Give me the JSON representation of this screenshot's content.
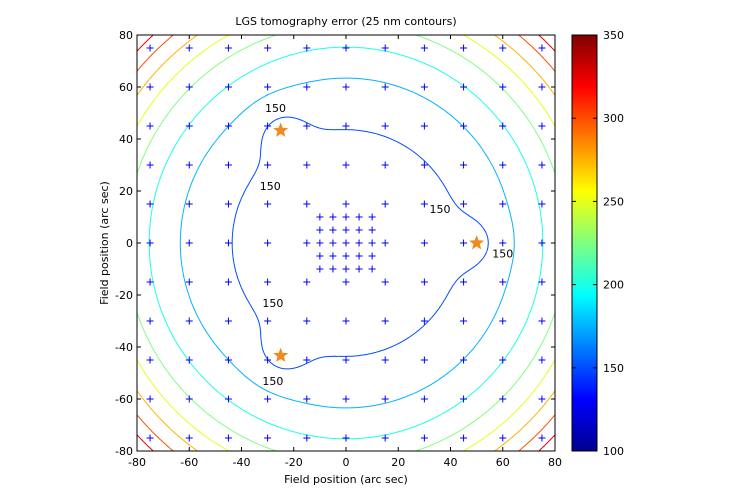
{
  "chart_data": [
    {
      "type": "contour",
      "title": "LGS tomography error (25 nm contours)",
      "xlabel": "Field position (arc sec)",
      "ylabel": "Field position (arc sec)",
      "xlim": [
        -80,
        80
      ],
      "ylim": [
        -80,
        80
      ],
      "x_ticks": [
        "-80",
        "-60",
        "-40",
        "-20",
        "0",
        "20",
        "40",
        "60",
        "80"
      ],
      "y_ticks": [
        "80",
        "60",
        "40",
        "20",
        "0",
        "-20",
        "-40",
        "-60",
        "-80"
      ],
      "colormap": "jet",
      "clim": [
        100,
        350
      ],
      "contour_step": 25,
      "contour_levels": [
        150,
        175,
        200,
        225,
        250,
        275,
        300,
        325
      ],
      "colorbar_ticks": [
        "350",
        "300",
        "250",
        "200",
        "150",
        "100"
      ],
      "contour_labels": [
        {
          "text": "150",
          "x": -27,
          "y": 52
        },
        {
          "text": "150",
          "x": -29,
          "y": 22
        },
        {
          "text": "150",
          "x": 36,
          "y": 13
        },
        {
          "text": "150",
          "x": 60,
          "y": -4
        },
        {
          "text": "150",
          "x": -28,
          "y": -23
        },
        {
          "text": "150",
          "x": -28,
          "y": -53
        }
      ],
      "stars": [
        {
          "x": -25,
          "y": 43.3
        },
        {
          "x": 50,
          "y": 0
        },
        {
          "x": -25,
          "y": -43.3
        }
      ],
      "marker_color": "#0000ff",
      "star_color": "#f08a1d",
      "grid_points": {
        "outer_values": [
          -75,
          -60,
          -45,
          -30,
          -15,
          0,
          15,
          30,
          45,
          60,
          75
        ],
        "inner_values": [
          -10,
          -5,
          0,
          5,
          10
        ]
      }
    }
  ]
}
